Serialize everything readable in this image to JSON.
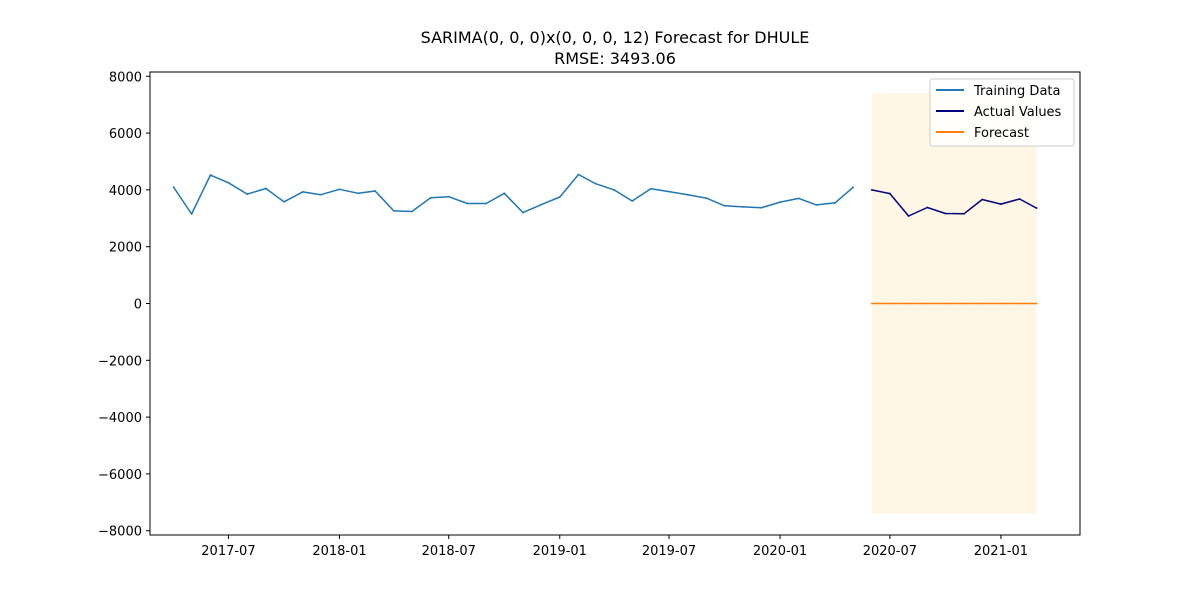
{
  "chart_data": {
    "type": "line",
    "title": "SARIMA(0, 0, 0)x(0, 0, 0, 12) Forecast for DHULE",
    "subtitle": "RMSE: 3493.06",
    "xlabel": "",
    "ylabel": "",
    "ylim": [
      -8150,
      8150
    ],
    "xlim": [
      "2017-02-21",
      "2021-05-12"
    ],
    "x_ticks": [
      "2017-07",
      "2018-01",
      "2018-07",
      "2019-01",
      "2019-07",
      "2020-01",
      "2020-07",
      "2021-01"
    ],
    "y_ticks": [
      8000,
      6000,
      4000,
      2000,
      0,
      -2000,
      -4000,
      -6000,
      -8000
    ],
    "grid": false,
    "legend_position": "top-right",
    "series": [
      {
        "name": "Training Data",
        "color": "#1f77b4",
        "x": [
          "2017-04",
          "2017-05",
          "2017-06",
          "2017-07",
          "2017-08",
          "2017-09",
          "2017-10",
          "2017-11",
          "2017-12",
          "2018-01",
          "2018-02",
          "2018-03",
          "2018-04",
          "2018-05",
          "2018-06",
          "2018-07",
          "2018-08",
          "2018-09",
          "2018-10",
          "2018-11",
          "2018-12",
          "2019-01",
          "2019-02",
          "2019-03",
          "2019-04",
          "2019-05",
          "2019-06",
          "2019-07",
          "2019-08",
          "2019-09",
          "2019-10",
          "2019-11",
          "2019-12",
          "2020-01",
          "2020-02",
          "2020-03",
          "2020-04",
          "2020-05"
        ],
        "values": [
          4100,
          3150,
          4520,
          4250,
          3850,
          4050,
          3580,
          3930,
          3830,
          4020,
          3880,
          3960,
          3260,
          3240,
          3720,
          3760,
          3520,
          3520,
          3880,
          3200,
          3480,
          3750,
          4540,
          4220,
          4000,
          3610,
          4040,
          3940,
          3830,
          3710,
          3440,
          3400,
          3370,
          3570,
          3700,
          3470,
          3540,
          4090
        ]
      },
      {
        "name": "Actual Values",
        "color": "#000080",
        "x": [
          "2020-06",
          "2020-07",
          "2020-08",
          "2020-09",
          "2020-10",
          "2020-11",
          "2020-12",
          "2021-01",
          "2021-02",
          "2021-03"
        ],
        "values": [
          4000,
          3870,
          3080,
          3380,
          3170,
          3160,
          3660,
          3500,
          3680,
          3360
        ]
      },
      {
        "name": "Forecast",
        "color": "#ff7f0e",
        "x": [
          "2020-06",
          "2020-07",
          "2020-08",
          "2020-09",
          "2020-10",
          "2020-11",
          "2020-12",
          "2021-01",
          "2021-02",
          "2021-03"
        ],
        "values": [
          0,
          0,
          0,
          0,
          0,
          0,
          0,
          0,
          0,
          0
        ]
      }
    ],
    "confidence_interval": {
      "x_start": "2020-06",
      "x_end": "2021-03",
      "lower": -7400,
      "upper": 7400,
      "color": "#ffa500"
    }
  }
}
